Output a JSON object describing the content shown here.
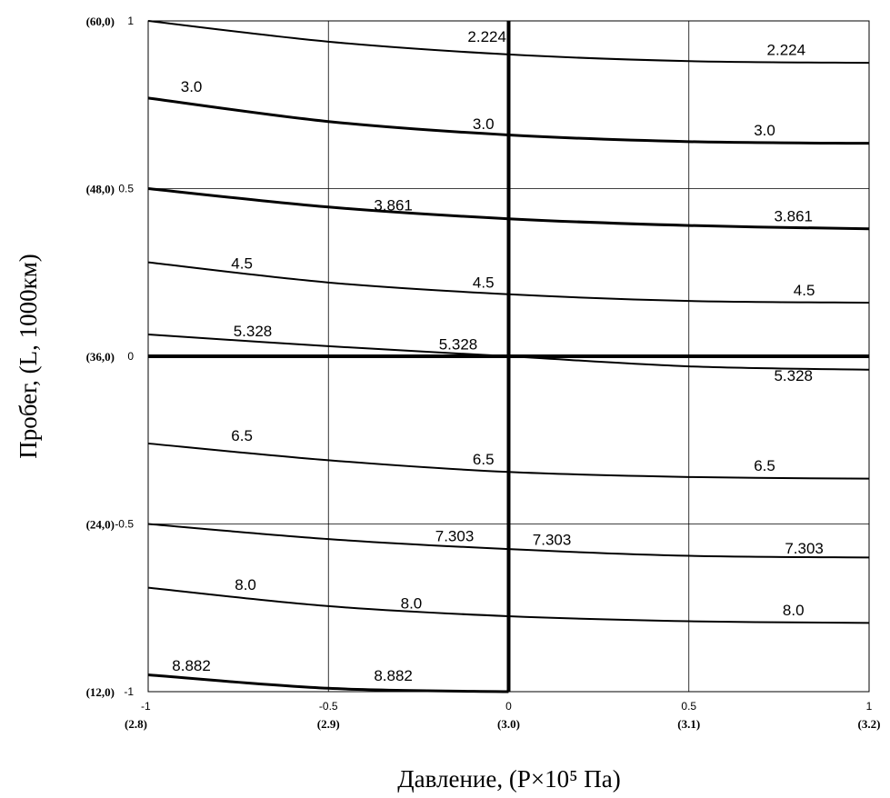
{
  "chart_data": {
    "type": "line",
    "title": "",
    "xlabel": "Давление, (P×10⁵ Па)",
    "ylabel": "Пробег, (L, 1000км)",
    "xlim": [
      -1,
      1
    ],
    "ylim": [
      -1,
      1
    ],
    "grid": true,
    "x_ticks": [
      {
        "value": -1,
        "code": "-1",
        "real": "(2.8)"
      },
      {
        "value": -0.5,
        "code": "-0.5",
        "real": "(2.9)"
      },
      {
        "value": 0,
        "code": "0",
        "real": "(3.0)"
      },
      {
        "value": 0.5,
        "code": "0.5",
        "real": "(3.1)"
      },
      {
        "value": 1,
        "code": "1",
        "real": "(3.2)"
      }
    ],
    "y_ticks": [
      {
        "value": 1,
        "code": "1",
        "real": "(60,0)"
      },
      {
        "value": 0.5,
        "code": "0.5",
        "real": "(48,0)"
      },
      {
        "value": 0,
        "code": "0",
        "real": "(36,0)"
      },
      {
        "value": -0.5,
        "code": "-0.5",
        "real": "(24,0)"
      },
      {
        "value": -1,
        "code": "-1",
        "real": "(12,0)"
      }
    ],
    "series": [
      {
        "x": [
          -1,
          -0.5,
          0,
          0.5,
          1
        ],
        "y": [
          1.0,
          0.938,
          0.9,
          0.88,
          0.875
        ],
        "bold": false,
        "labels": [
          {
            "text": "2.224",
            "x": -0.06,
            "y": 0.937
          },
          {
            "text": "2.224",
            "x": 0.77,
            "y": 0.898
          }
        ]
      },
      {
        "x": [
          -1,
          -0.5,
          0,
          0.5,
          1
        ],
        "y": [
          0.77,
          0.7,
          0.66,
          0.64,
          0.635
        ],
        "bold": true,
        "labels": [
          {
            "text": "3.0",
            "x": -0.88,
            "y": 0.788
          },
          {
            "text": "3.0",
            "x": -0.07,
            "y": 0.678
          },
          {
            "text": "3.0",
            "x": 0.71,
            "y": 0.658
          }
        ]
      },
      {
        "x": [
          -1,
          -0.5,
          0,
          0.5,
          1
        ],
        "y": [
          0.5,
          0.445,
          0.41,
          0.39,
          0.38
        ],
        "bold": true,
        "labels": [
          {
            "text": "3.861",
            "x": -0.32,
            "y": 0.435
          },
          {
            "text": "3.861",
            "x": 0.79,
            "y": 0.402
          }
        ]
      },
      {
        "x": [
          -1,
          -0.5,
          0,
          0.5,
          1
        ],
        "y": [
          0.28,
          0.22,
          0.185,
          0.165,
          0.16
        ],
        "bold": false,
        "labels": [
          {
            "text": "4.5",
            "x": -0.74,
            "y": 0.262
          },
          {
            "text": "4.5",
            "x": -0.07,
            "y": 0.205
          },
          {
            "text": "4.5",
            "x": 0.82,
            "y": 0.182
          }
        ]
      },
      {
        "x": [
          -1,
          -0.5,
          0,
          0.5,
          1
        ],
        "y": [
          0.065,
          0.03,
          0.0,
          -0.03,
          -0.04
        ],
        "bold": false,
        "labels": [
          {
            "text": "5.328",
            "x": -0.71,
            "y": 0.06
          },
          {
            "text": "5.328",
            "x": -0.14,
            "y": 0.02
          },
          {
            "text": "5.328",
            "x": 0.79,
            "y": -0.073
          }
        ]
      },
      {
        "x": [
          -1,
          -0.5,
          0,
          0.5,
          1
        ],
        "y": [
          -0.26,
          -0.31,
          -0.345,
          -0.36,
          -0.365
        ],
        "bold": false,
        "labels": [
          {
            "text": "6.5",
            "x": -0.74,
            "y": -0.252
          },
          {
            "text": "6.5",
            "x": -0.07,
            "y": -0.322
          },
          {
            "text": "6.5",
            "x": 0.71,
            "y": -0.342
          }
        ]
      },
      {
        "x": [
          -1,
          -0.5,
          0,
          0.5,
          1
        ],
        "y": [
          -0.5,
          -0.545,
          -0.575,
          -0.595,
          -0.6
        ],
        "bold": false,
        "labels": [
          {
            "text": "7.303",
            "x": -0.15,
            "y": -0.552
          },
          {
            "text": "7.303",
            "x": 0.12,
            "y": -0.562
          },
          {
            "text": "7.303",
            "x": 0.82,
            "y": -0.588
          }
        ]
      },
      {
        "x": [
          -1,
          -0.5,
          0,
          0.5,
          1
        ],
        "y": [
          -0.69,
          -0.745,
          -0.775,
          -0.79,
          -0.795
        ],
        "bold": false,
        "labels": [
          {
            "text": "8.0",
            "x": -0.73,
            "y": -0.697
          },
          {
            "text": "8.0",
            "x": -0.27,
            "y": -0.752
          },
          {
            "text": "8.0",
            "x": 0.79,
            "y": -0.772
          }
        ]
      },
      {
        "x": [
          -1,
          -0.5,
          0
        ],
        "y": [
          -0.95,
          -0.99,
          -1.0
        ],
        "bold": true,
        "labels": [
          {
            "text": "8.882",
            "x": -0.88,
            "y": -0.938
          },
          {
            "text": "8.882",
            "x": -0.32,
            "y": -0.968
          }
        ]
      }
    ]
  }
}
